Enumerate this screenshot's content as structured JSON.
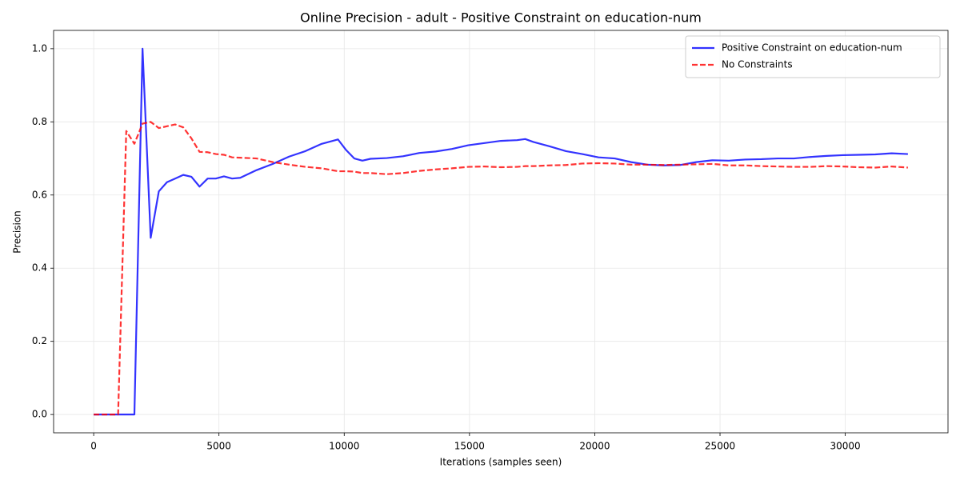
{
  "chart_data": {
    "type": "line",
    "title": "Online Precision - adult - Positive Constraint on education-num",
    "xlabel": "Iterations (samples seen)",
    "ylabel": "Precision",
    "x": [
      0,
      325,
      650,
      975,
      1300,
      1625,
      1950,
      2275,
      2600,
      2925,
      3250,
      3575,
      3900,
      4225,
      4550,
      4875,
      5200,
      5525,
      5850,
      6500,
      7150,
      7800,
      8450,
      9100,
      9750,
      10075,
      10400,
      10725,
      11050,
      11700,
      12350,
      13000,
      13650,
      14300,
      14950,
      15600,
      16250,
      16900,
      17225,
      17550,
      18200,
      18850,
      19500,
      20150,
      20800,
      21450,
      22100,
      22750,
      23400,
      24050,
      24700,
      25350,
      26000,
      26650,
      27300,
      27950,
      28600,
      29250,
      29900,
      30550,
      31200,
      31850,
      32500
    ],
    "series": [
      {
        "name": "Positive Constraint on education-num",
        "color": "#0000ff",
        "linestyle": "solid",
        "values": [
          0,
          0,
          0,
          0,
          0,
          0,
          1.0,
          0.483,
          0.61,
          0.635,
          0.645,
          0.655,
          0.65,
          0.623,
          0.645,
          0.645,
          0.651,
          0.645,
          0.647,
          0.668,
          0.685,
          0.705,
          0.72,
          0.74,
          0.752,
          0.723,
          0.7,
          0.694,
          0.699,
          0.701,
          0.706,
          0.715,
          0.719,
          0.726,
          0.736,
          0.742,
          0.748,
          0.75,
          0.753,
          0.745,
          0.733,
          0.72,
          0.712,
          0.703,
          0.7,
          0.69,
          0.683,
          0.681,
          0.682,
          0.69,
          0.695,
          0.694,
          0.697,
          0.698,
          0.7,
          0.7,
          0.704,
          0.707,
          0.709,
          0.71,
          0.711,
          0.714,
          0.712
        ]
      },
      {
        "name": "No Constraints",
        "color": "#ff0000",
        "linestyle": "dashed",
        "values": [
          0,
          0,
          0,
          0,
          0.775,
          0.74,
          0.795,
          0.8,
          0.783,
          0.788,
          0.793,
          0.785,
          0.755,
          0.718,
          0.717,
          0.712,
          0.71,
          0.703,
          0.702,
          0.7,
          0.69,
          0.683,
          0.677,
          0.673,
          0.665,
          0.665,
          0.664,
          0.66,
          0.66,
          0.657,
          0.66,
          0.666,
          0.67,
          0.673,
          0.677,
          0.678,
          0.676,
          0.677,
          0.679,
          0.679,
          0.681,
          0.682,
          0.686,
          0.687,
          0.686,
          0.683,
          0.683,
          0.682,
          0.683,
          0.684,
          0.685,
          0.681,
          0.681,
          0.679,
          0.678,
          0.677,
          0.677,
          0.679,
          0.678,
          0.676,
          0.675,
          0.678,
          0.675
        ]
      }
    ],
    "xlim": [
      -1600,
      34100
    ],
    "ylim": [
      -0.05,
      1.05
    ],
    "xticks": [
      0,
      5000,
      10000,
      15000,
      20000,
      25000,
      30000
    ],
    "yticks": [
      {
        "value": 0,
        "label": "0.0"
      },
      0.2,
      0.4,
      0.6,
      0.8,
      {
        "value": 1,
        "label": "1.0"
      }
    ],
    "grid": true,
    "legend": "upper right"
  }
}
